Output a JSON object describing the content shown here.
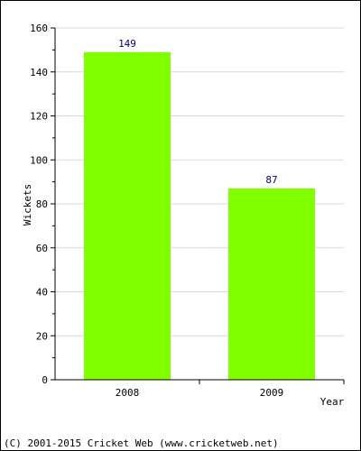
{
  "chart_data": {
    "type": "bar",
    "categories": [
      "2008",
      "2009"
    ],
    "values": [
      149,
      87
    ],
    "data_labels": [
      "149",
      "87"
    ],
    "title": "",
    "xlabel": "Year",
    "ylabel": "Wickets",
    "ylim": [
      0,
      160
    ],
    "yticks": [
      0,
      20,
      40,
      60,
      80,
      100,
      120,
      140,
      160
    ],
    "grid": true,
    "bar_color": "#80ff00",
    "label_color": "#000080"
  },
  "footer": {
    "copyright": "(C) 2001-2015 Cricket Web (www.cricketweb.net)"
  }
}
